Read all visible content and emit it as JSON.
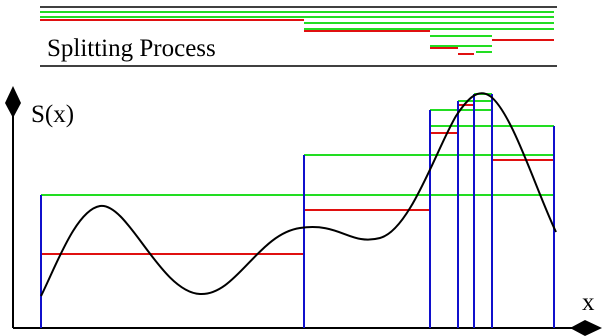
{
  "title": "Splitting Process",
  "axis": {
    "y_label": "S(x)",
    "x_label": "x"
  },
  "colors": {
    "upper_bound": "#22dd22",
    "lower_bound": "#e01010",
    "interval_edge": "#1010cc",
    "curve": "#000000",
    "axes": "#000000"
  }
}
